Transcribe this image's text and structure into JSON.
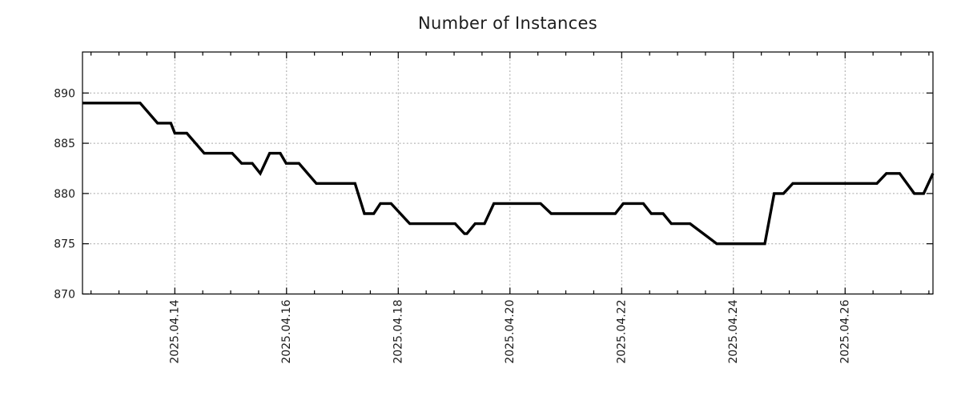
{
  "title": "Number of Instances",
  "background": "#ffffff",
  "chart_data": {
    "type": "line",
    "title": "Number of Instances",
    "xlabel": "",
    "ylabel": "",
    "legend": "none",
    "grid": true,
    "line_color": "#000000",
    "grid_color": "#a6a6a6",
    "frame_color": "#000000",
    "text_color": "#1c1c1c",
    "x_axis": {
      "unit": "day of April 2025 (fractional days)",
      "min": 12.347,
      "max": 27.573,
      "major_ticks": [
        14,
        16,
        18,
        20,
        22,
        24,
        26
      ],
      "major_tick_labels": [
        "2025.04.14",
        "2025.04.16",
        "2025.04.18",
        "2025.04.20",
        "2025.04.22",
        "2025.04.24",
        "2025.04.26"
      ],
      "minor_tick_step": 0.5
    },
    "y_axis": {
      "min": 870,
      "max": 894.08,
      "ticks": [
        870,
        875,
        880,
        885,
        890
      ],
      "tick_labels": [
        "870",
        "875",
        "880",
        "885",
        "890"
      ]
    },
    "series": [
      {
        "name": "instances",
        "points": [
          [
            12.347,
            889
          ],
          [
            13.379,
            889
          ],
          [
            13.69,
            887
          ],
          [
            13.928,
            887
          ],
          [
            14.0,
            886
          ],
          [
            14.215,
            886
          ],
          [
            14.526,
            884
          ],
          [
            15.028,
            884
          ],
          [
            15.196,
            883
          ],
          [
            15.386,
            883
          ],
          [
            15.53,
            882
          ],
          [
            15.697,
            884
          ],
          [
            15.888,
            884
          ],
          [
            15.993,
            883
          ],
          [
            16.222,
            883
          ],
          [
            16.533,
            881
          ],
          [
            17.226,
            881
          ],
          [
            17.394,
            878
          ],
          [
            17.561,
            878
          ],
          [
            17.68,
            879
          ],
          [
            17.871,
            879
          ],
          [
            18.206,
            877
          ],
          [
            19.018,
            877
          ],
          [
            19.186,
            876
          ],
          [
            19.229,
            876
          ],
          [
            19.376,
            877
          ],
          [
            19.544,
            877
          ],
          [
            19.712,
            879
          ],
          [
            20.548,
            879
          ],
          [
            20.739,
            878
          ],
          [
            21.886,
            878
          ],
          [
            22.029,
            879
          ],
          [
            22.387,
            879
          ],
          [
            22.531,
            878
          ],
          [
            22.742,
            878
          ],
          [
            22.889,
            877
          ],
          [
            23.225,
            877
          ],
          [
            23.702,
            875
          ],
          [
            24.562,
            875
          ],
          [
            24.73,
            880
          ],
          [
            24.896,
            880
          ],
          [
            25.064,
            881
          ],
          [
            26.57,
            881
          ],
          [
            26.738,
            882
          ],
          [
            26.976,
            882
          ],
          [
            27.239,
            880
          ],
          [
            27.406,
            880
          ],
          [
            27.573,
            882
          ]
        ]
      }
    ]
  }
}
